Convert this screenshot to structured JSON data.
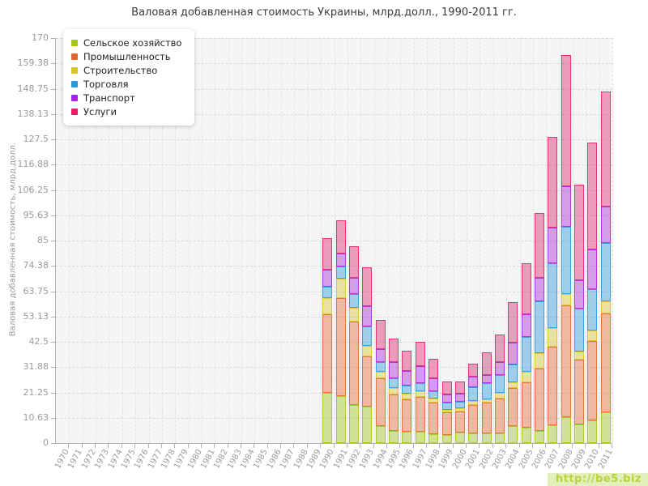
{
  "title": "Валовая добавленная стоимость Украины, млрд.долл., 1990-2011 гг.",
  "y_axis_title": "Валовая добавленная стоимость, млрд.долл.",
  "watermark": "http://be5.biz",
  "palette": {
    "plot_background": "#f5f5f5",
    "grid_color": "#dcdcdc",
    "axis_text": "#9a9a9a",
    "title_text": "#3a3a3a",
    "watermark_bg": "#e3f0bd",
    "watermark_text": "#bcd23a"
  },
  "chart_data": {
    "type": "bar",
    "stacked": true,
    "title": "Валовая добавленная стоимость Украины, млрд.долл., 1990-2011 гг.",
    "ylabel": "Валовая добавленная стоимость, млрд.долл.",
    "xlabel": "",
    "ylim": [
      0,
      170
    ],
    "grid": true,
    "legend_position": "top-left",
    "y_ticks": [
      "0",
      "10.63",
      "21.25",
      "31.88",
      "42.5",
      "53.13",
      "63.75",
      "74.38",
      "85",
      "95.63",
      "106.25",
      "116.88",
      "127.5",
      "138.13",
      "148.75",
      "159.38",
      "170"
    ],
    "x_categories": [
      "1970",
      "1971",
      "1972",
      "1973",
      "1974",
      "1975",
      "1976",
      "1977",
      "1978",
      "1979",
      "1980",
      "1981",
      "1982",
      "1983",
      "1984",
      "1985",
      "1986",
      "1987",
      "1988",
      "1989",
      "1990",
      "1991",
      "1992",
      "1993",
      "1994",
      "1995",
      "1996",
      "1997",
      "1998",
      "1999",
      "2000",
      "2001",
      "2002",
      "2003",
      "2004",
      "2005",
      "2006",
      "2007",
      "2008",
      "2009",
      "2010",
      "2011"
    ],
    "bar_years": [
      "1990",
      "1991",
      "1992",
      "1993",
      "1994",
      "1995",
      "1996",
      "1997",
      "1998",
      "1999",
      "2000",
      "2001",
      "2002",
      "2003",
      "2004",
      "2005",
      "2006",
      "2007",
      "2008",
      "2009",
      "2010",
      "2011"
    ],
    "series": [
      {
        "name": "Сельское хозяйство",
        "color": "#a3c61c",
        "values": [
          21.1,
          19.7,
          16.0,
          15.4,
          7.1,
          5.2,
          4.9,
          4.7,
          3.7,
          3.5,
          4.3,
          4.1,
          4.1,
          4.1,
          7.1,
          6.6,
          5.2,
          7.5,
          10.9,
          7.8,
          9.5,
          12.9
        ]
      },
      {
        "name": "Промышленность",
        "color": "#e2672b",
        "values": [
          33.1,
          41.1,
          35.1,
          21.0,
          20.0,
          15.3,
          13.4,
          14.7,
          13.2,
          9.3,
          9.1,
          11.9,
          12.8,
          14.7,
          15.9,
          19.0,
          26.1,
          33.0,
          47.0,
          27.2,
          33.4,
          41.4
        ]
      },
      {
        "name": "Строительство",
        "color": "#d8c623",
        "values": [
          6.6,
          8.1,
          5.7,
          4.3,
          2.7,
          2.5,
          2.4,
          2.5,
          1.9,
          1.1,
          1.1,
          1.7,
          1.4,
          2.3,
          2.6,
          4.2,
          6.4,
          7.8,
          4.6,
          3.4,
          4.5,
          5.1
        ]
      },
      {
        "name": "Торговля",
        "color": "#2a96d8",
        "values": [
          4.8,
          5.1,
          5.7,
          8.2,
          4.1,
          4.1,
          3.4,
          3.4,
          3.1,
          3.0,
          2.8,
          5.7,
          6.8,
          7.3,
          7.4,
          14.7,
          21.7,
          27.2,
          28.3,
          18.2,
          17.2,
          24.6
        ]
      },
      {
        "name": "Транспорт",
        "color": "#aa22dd",
        "values": [
          7.1,
          5.7,
          6.8,
          8.5,
          5.6,
          6.8,
          6.1,
          7.1,
          5.2,
          3.4,
          3.4,
          4.5,
          3.6,
          5.5,
          9.2,
          9.7,
          10.1,
          14.9,
          17.0,
          11.8,
          16.6,
          15.3
        ]
      },
      {
        "name": "Услуги",
        "color": "#dd2268",
        "values": [
          13.3,
          13.7,
          13.2,
          16.3,
          12.2,
          9.9,
          8.7,
          10.2,
          8.4,
          5.5,
          5.1,
          5.3,
          9.4,
          11.5,
          17.0,
          21.3,
          27.0,
          38.0,
          55.0,
          40.0,
          44.9,
          48.2
        ]
      }
    ],
    "totals": [
      86.0,
      93.4,
      82.5,
      73.7,
      51.7,
      43.8,
      38.9,
      42.6,
      35.5,
      25.8,
      25.8,
      33.2,
      38.1,
      45.4,
      59.2,
      75.5,
      96.5,
      128.4,
      162.8,
      108.4,
      126.1,
      147.5
    ]
  }
}
